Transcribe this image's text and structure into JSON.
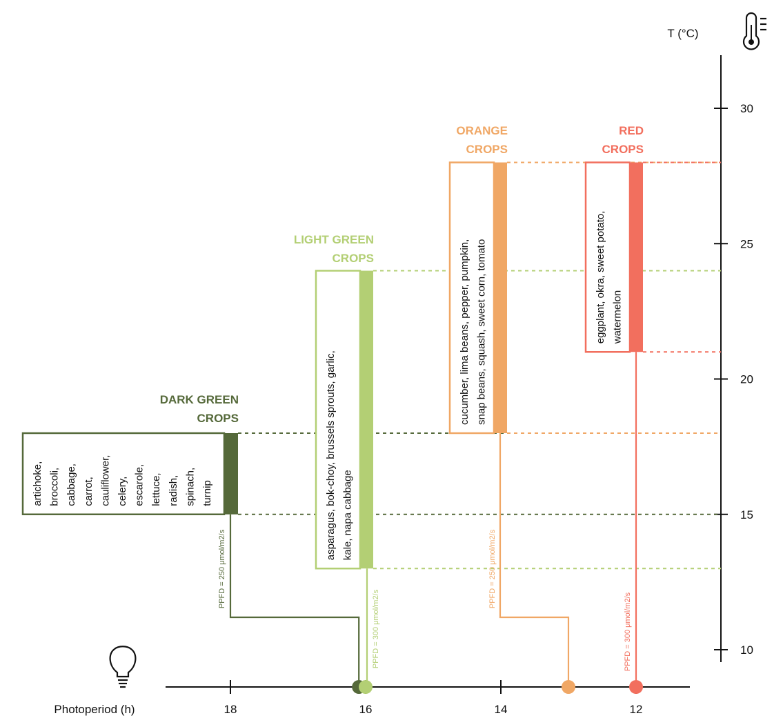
{
  "axes": {
    "temperature": {
      "label": "T (°C)",
      "ticks": [
        {
          "value": 30,
          "label": "30"
        },
        {
          "value": 25,
          "label": "25"
        },
        {
          "value": 20,
          "label": "20"
        },
        {
          "value": 15,
          "label": "15"
        },
        {
          "value": 10,
          "label": "10"
        }
      ],
      "range": [
        9.5,
        32.0
      ],
      "icon": "thermometer-icon"
    },
    "photoperiod": {
      "label": "Photoperiod (h)",
      "ticks": [
        {
          "value": 18,
          "label": "18"
        },
        {
          "value": 16,
          "label": "16"
        },
        {
          "value": 14,
          "label": "14"
        },
        {
          "value": 12,
          "label": "12"
        }
      ],
      "icon": "lightbulb-icon"
    }
  },
  "groups": [
    {
      "id": "dark-green",
      "title_line1": "DARK GREEN",
      "title_line2": "CROPS",
      "color": "#55693a",
      "temp_min": 15,
      "temp_max": 18,
      "photoperiod_h": 16.1,
      "ppfd_label": "PPFD = 250 μmol/m2/s",
      "crops_lines": [
        "artichoke,",
        "broccoli,",
        "cabbage,",
        "carrot,",
        "cauliflower,",
        "celery,",
        "escarole,",
        "lettuce,",
        "radish,",
        "spinach,",
        "turnip"
      ]
    },
    {
      "id": "light-green",
      "title_line1": "LIGHT GREEN",
      "title_line2": "CROPS",
      "color": "#b3cf74",
      "temp_min": 13,
      "temp_max": 24,
      "photoperiod_h": 16,
      "ppfd_label": "PPFD = 300 μmol/m2/s",
      "crops_lines": [
        "asparagus, bok-choy, brussels sprouts, garlic,",
        "kale, napa cabbage"
      ]
    },
    {
      "id": "orange",
      "title_line1": "ORANGE",
      "title_line2": "CROPS",
      "color": "#f0a765",
      "temp_min": 18,
      "temp_max": 28,
      "photoperiod_h": 13,
      "ppfd_label": "PPFD = 250 μmol/m2/s",
      "crops_lines": [
        "cucumber, lima beans, pepper, pumpkin,",
        "snap beans, squash, sweet corn, tomato"
      ]
    },
    {
      "id": "red",
      "title_line1": "RED",
      "title_line2": "CROPS",
      "color": "#f26f5e",
      "temp_min": 21,
      "temp_max": 28,
      "photoperiod_h": 12,
      "ppfd_label": "PPFD = 300 μmol/m2/s",
      "crops_lines": [
        "eggplant, okra, sweet potato,",
        "watermelon"
      ]
    }
  ]
}
